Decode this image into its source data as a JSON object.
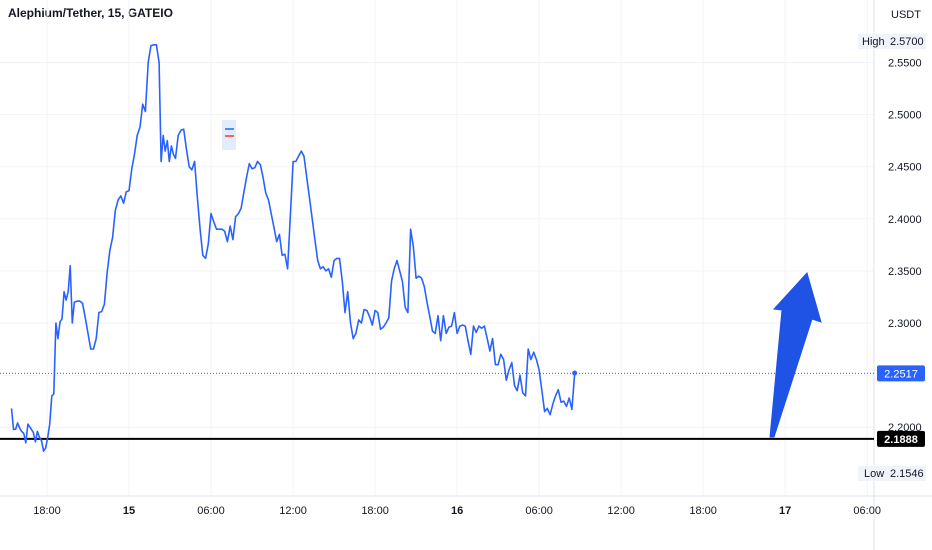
{
  "header": {
    "title": "Alephium/Tether, 15, GATEIO",
    "currency": "USDT"
  },
  "colors": {
    "line": "#2962ff",
    "arrow": "#1e53e5",
    "support_line": "#000000",
    "grid": "#f0f3fa",
    "price_tag_bg": "#2962ff",
    "support_tag_bg": "#000000"
  },
  "badges": {
    "high_label": "High",
    "high_value": "2.5700",
    "low_label": "Low",
    "low_value": "2.1546",
    "current_value": "2.2517",
    "support_value": "2.1888"
  },
  "chart_data": {
    "type": "line",
    "symbol": "Alephium/Tether",
    "interval": "15",
    "exchange": "GATEIO",
    "yticks": [
      "2.5500",
      "2.5000",
      "2.4500",
      "2.4000",
      "2.3500",
      "2.3000",
      "2.2500",
      "2.2000"
    ],
    "ylim": [
      2.135,
      2.6
    ],
    "xticks": [
      {
        "label": "18:00",
        "t": 0,
        "bold": false
      },
      {
        "label": "15",
        "t": 6,
        "bold": true
      },
      {
        "label": "06:00",
        "t": 12,
        "bold": false
      },
      {
        "label": "12:00",
        "t": 18,
        "bold": false
      },
      {
        "label": "18:00",
        "t": 24,
        "bold": false
      },
      {
        "label": "16",
        "t": 30,
        "bold": true
      },
      {
        "label": "06:00",
        "t": 36,
        "bold": false
      },
      {
        "label": "12:00",
        "t": 42,
        "bold": false
      },
      {
        "label": "18:00",
        "t": 48,
        "bold": false
      },
      {
        "label": "17",
        "t": 54,
        "bold": true
      },
      {
        "label": "06:00",
        "t": 60,
        "bold": false
      }
    ],
    "x_unit": "hours from first labeled tick (18:00)",
    "series": [
      {
        "values": [
          [
            -2.6,
            2.218
          ],
          [
            -2.45,
            2.198
          ],
          [
            -2.3,
            2.198
          ],
          [
            -2.15,
            2.204
          ],
          [
            -2.0,
            2.199
          ],
          [
            -1.85,
            2.196
          ],
          [
            -1.7,
            2.194
          ],
          [
            -1.55,
            2.185
          ],
          [
            -1.4,
            2.203
          ],
          [
            -1.2,
            2.199
          ],
          [
            -1.0,
            2.195
          ],
          [
            -0.85,
            2.186
          ],
          [
            -0.7,
            2.196
          ],
          [
            -0.55,
            2.19
          ],
          [
            -0.4,
            2.187
          ],
          [
            -0.25,
            2.177
          ],
          [
            -0.1,
            2.18
          ],
          [
            0.05,
            2.19
          ],
          [
            0.2,
            2.203
          ],
          [
            0.35,
            2.23
          ],
          [
            0.5,
            2.232
          ],
          [
            0.65,
            2.3
          ],
          [
            0.8,
            2.285
          ],
          [
            0.95,
            2.301
          ],
          [
            1.1,
            2.304
          ],
          [
            1.25,
            2.33
          ],
          [
            1.4,
            2.322
          ],
          [
            1.55,
            2.33
          ],
          [
            1.7,
            2.355
          ],
          [
            1.85,
            2.3
          ],
          [
            2.0,
            2.32
          ],
          [
            2.2,
            2.321
          ],
          [
            2.4,
            2.321
          ],
          [
            2.6,
            2.319
          ],
          [
            2.8,
            2.305
          ],
          [
            3.0,
            2.29
          ],
          [
            3.2,
            2.275
          ],
          [
            3.4,
            2.275
          ],
          [
            3.6,
            2.285
          ],
          [
            3.8,
            2.31
          ],
          [
            4.0,
            2.311
          ],
          [
            4.2,
            2.318
          ],
          [
            4.4,
            2.348
          ],
          [
            4.6,
            2.37
          ],
          [
            4.8,
            2.382
          ],
          [
            5.0,
            2.408
          ],
          [
            5.2,
            2.418
          ],
          [
            5.4,
            2.422
          ],
          [
            5.6,
            2.415
          ],
          [
            5.8,
            2.426
          ],
          [
            6.0,
            2.427
          ],
          [
            6.2,
            2.448
          ],
          [
            6.4,
            2.462
          ],
          [
            6.6,
            2.48
          ],
          [
            6.8,
            2.488
          ],
          [
            7.0,
            2.51
          ],
          [
            7.2,
            2.503
          ],
          [
            7.4,
            2.55
          ],
          [
            7.6,
            2.566
          ],
          [
            7.8,
            2.567
          ],
          [
            8.0,
            2.567
          ],
          [
            8.2,
            2.55
          ],
          [
            8.35,
            2.455
          ],
          [
            8.5,
            2.48
          ],
          [
            8.65,
            2.465
          ],
          [
            8.8,
            2.475
          ],
          [
            8.95,
            2.455
          ],
          [
            9.1,
            2.47
          ],
          [
            9.25,
            2.462
          ],
          [
            9.4,
            2.458
          ],
          [
            9.6,
            2.48
          ],
          [
            9.8,
            2.485
          ],
          [
            10.0,
            2.486
          ],
          [
            10.2,
            2.467
          ],
          [
            10.4,
            2.45
          ],
          [
            10.6,
            2.447
          ],
          [
            10.8,
            2.455
          ],
          [
            11.0,
            2.42
          ],
          [
            11.2,
            2.39
          ],
          [
            11.4,
            2.365
          ],
          [
            11.6,
            2.362
          ],
          [
            11.8,
            2.376
          ],
          [
            12.0,
            2.405
          ],
          [
            12.2,
            2.397
          ],
          [
            12.4,
            2.39
          ],
          [
            12.6,
            2.39
          ],
          [
            12.8,
            2.39
          ],
          [
            13.0,
            2.388
          ],
          [
            13.2,
            2.378
          ],
          [
            13.4,
            2.393
          ],
          [
            13.6,
            2.38
          ],
          [
            13.8,
            2.402
          ],
          [
            14.0,
            2.405
          ],
          [
            14.2,
            2.41
          ],
          [
            14.4,
            2.425
          ],
          [
            14.6,
            2.44
          ],
          [
            14.8,
            2.453
          ],
          [
            15.0,
            2.448
          ],
          [
            15.2,
            2.449
          ],
          [
            15.4,
            2.455
          ],
          [
            15.6,
            2.452
          ],
          [
            15.8,
            2.44
          ],
          [
            16.0,
            2.425
          ],
          [
            16.2,
            2.418
          ],
          [
            16.4,
            2.405
          ],
          [
            16.6,
            2.392
          ],
          [
            16.8,
            2.378
          ],
          [
            17.0,
            2.385
          ],
          [
            17.2,
            2.365
          ],
          [
            17.4,
            2.366
          ],
          [
            17.6,
            2.352
          ],
          [
            17.8,
            2.402
          ],
          [
            18.0,
            2.455
          ],
          [
            18.2,
            2.455
          ],
          [
            18.4,
            2.46
          ],
          [
            18.6,
            2.465
          ],
          [
            18.8,
            2.46
          ],
          [
            19.0,
            2.44
          ],
          [
            19.2,
            2.42
          ],
          [
            19.4,
            2.4
          ],
          [
            19.6,
            2.38
          ],
          [
            19.8,
            2.36
          ],
          [
            20.0,
            2.352
          ],
          [
            20.2,
            2.354
          ],
          [
            20.4,
            2.35
          ],
          [
            20.6,
            2.352
          ],
          [
            20.8,
            2.344
          ],
          [
            21.0,
            2.36
          ],
          [
            21.2,
            2.362
          ],
          [
            21.4,
            2.362
          ],
          [
            21.6,
            2.34
          ],
          [
            21.8,
            2.31
          ],
          [
            22.0,
            2.33
          ],
          [
            22.2,
            2.3
          ],
          [
            22.4,
            2.285
          ],
          [
            22.6,
            2.29
          ],
          [
            22.8,
            2.303
          ],
          [
            23.0,
            2.3
          ],
          [
            23.2,
            2.313
          ],
          [
            23.4,
            2.312
          ],
          [
            23.6,
            2.306
          ],
          [
            23.8,
            2.298
          ],
          [
            24.0,
            2.312
          ],
          [
            24.2,
            2.31
          ],
          [
            24.4,
            2.294
          ],
          [
            24.6,
            2.296
          ],
          [
            24.8,
            2.3
          ],
          [
            25.0,
            2.305
          ],
          [
            25.2,
            2.34
          ],
          [
            25.4,
            2.352
          ],
          [
            25.6,
            2.36
          ],
          [
            25.8,
            2.35
          ],
          [
            26.0,
            2.34
          ],
          [
            26.2,
            2.315
          ],
          [
            26.4,
            2.31
          ],
          [
            26.6,
            2.39
          ],
          [
            26.8,
            2.373
          ],
          [
            27.0,
            2.343
          ],
          [
            27.2,
            2.345
          ],
          [
            27.4,
            2.343
          ],
          [
            27.6,
            2.335
          ],
          [
            27.8,
            2.32
          ],
          [
            28.0,
            2.306
          ],
          [
            28.2,
            2.292
          ],
          [
            28.4,
            2.29
          ],
          [
            28.6,
            2.307
          ],
          [
            28.8,
            2.283
          ],
          [
            29.0,
            2.307
          ],
          [
            29.2,
            2.29
          ],
          [
            29.4,
            2.296
          ],
          [
            29.6,
            2.297
          ],
          [
            29.8,
            2.31
          ],
          [
            30.0,
            2.29
          ],
          [
            30.2,
            2.297
          ],
          [
            30.4,
            2.298
          ],
          [
            30.6,
            2.297
          ],
          [
            30.8,
            2.283
          ],
          [
            31.0,
            2.27
          ],
          [
            31.2,
            2.297
          ],
          [
            31.4,
            2.291
          ],
          [
            31.6,
            2.297
          ],
          [
            31.8,
            2.295
          ],
          [
            32.0,
            2.297
          ],
          [
            32.2,
            2.285
          ],
          [
            32.4,
            2.273
          ],
          [
            32.6,
            2.285
          ],
          [
            32.8,
            2.26
          ],
          [
            33.0,
            2.26
          ],
          [
            33.2,
            2.27
          ],
          [
            33.4,
            2.265
          ],
          [
            33.6,
            2.245
          ],
          [
            33.8,
            2.255
          ],
          [
            34.0,
            2.262
          ],
          [
            34.2,
            2.24
          ],
          [
            34.4,
            2.235
          ],
          [
            34.6,
            2.25
          ],
          [
            34.8,
            2.233
          ],
          [
            35.0,
            2.23
          ],
          [
            35.2,
            2.275
          ],
          [
            35.4,
            2.265
          ],
          [
            35.6,
            2.272
          ],
          [
            35.8,
            2.265
          ],
          [
            36.0,
            2.255
          ],
          [
            36.2,
            2.235
          ],
          [
            36.4,
            2.215
          ],
          [
            36.6,
            2.218
          ],
          [
            36.8,
            2.212
          ],
          [
            37.0,
            2.222
          ],
          [
            37.2,
            2.23
          ],
          [
            37.4,
            2.236
          ],
          [
            37.6,
            2.224
          ],
          [
            37.8,
            2.225
          ],
          [
            38.0,
            2.22
          ],
          [
            38.2,
            2.228
          ],
          [
            38.4,
            2.217
          ],
          [
            38.6,
            2.252
          ]
        ]
      }
    ],
    "support_level": 2.1888,
    "last_value": 2.2517,
    "annotations": [
      "upward arrow"
    ],
    "grid": true
  }
}
